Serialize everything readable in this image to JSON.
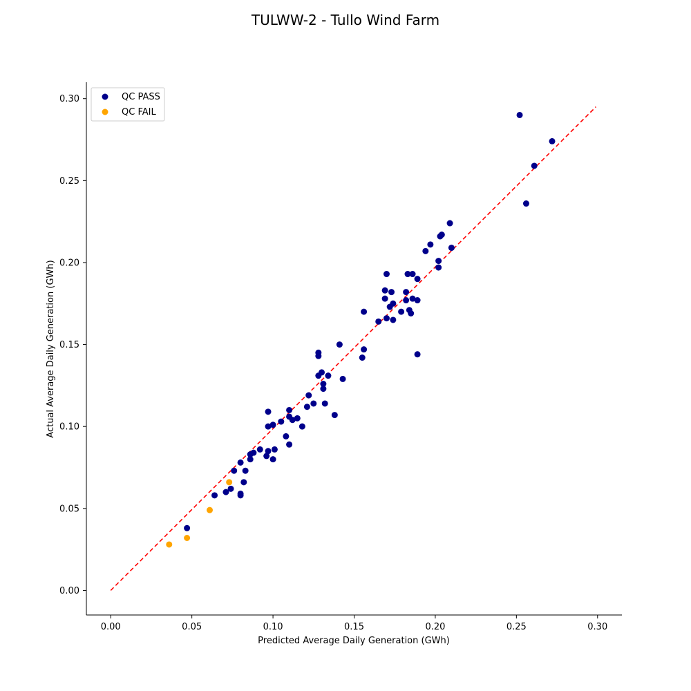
{
  "chart_data": {
    "type": "scatter",
    "title": "TULWW-2 - Tullo Wind Farm",
    "xlabel": "Predicted Average Daily Generation (GWh)",
    "ylabel": "Actual Average Daily Generation (GWh)",
    "xlim": [
      -0.015,
      0.315
    ],
    "ylim": [
      -0.015,
      0.31
    ],
    "x_ticks": [
      "0.00",
      "0.05",
      "0.10",
      "0.15",
      "0.20",
      "0.25",
      "0.30"
    ],
    "y_ticks": [
      "0.00",
      "0.05",
      "0.10",
      "0.15",
      "0.20",
      "0.25",
      "0.30"
    ],
    "grid": false,
    "legend_position": "top-left",
    "reference_line": {
      "style": "dashed",
      "color": "#ff0000",
      "from": [
        0.0,
        0.0
      ],
      "to": [
        0.299,
        0.295
      ]
    },
    "series": [
      {
        "name": "QC PASS",
        "color": "#00008b",
        "points": [
          [
            0.047,
            0.038
          ],
          [
            0.064,
            0.058
          ],
          [
            0.071,
            0.06
          ],
          [
            0.074,
            0.062
          ],
          [
            0.076,
            0.073
          ],
          [
            0.08,
            0.058
          ],
          [
            0.08,
            0.059
          ],
          [
            0.08,
            0.078
          ],
          [
            0.082,
            0.066
          ],
          [
            0.083,
            0.073
          ],
          [
            0.086,
            0.08
          ],
          [
            0.086,
            0.083
          ],
          [
            0.088,
            0.084
          ],
          [
            0.092,
            0.086
          ],
          [
            0.096,
            0.082
          ],
          [
            0.097,
            0.085
          ],
          [
            0.097,
            0.1
          ],
          [
            0.097,
            0.109
          ],
          [
            0.1,
            0.08
          ],
          [
            0.1,
            0.101
          ],
          [
            0.101,
            0.086
          ],
          [
            0.105,
            0.103
          ],
          [
            0.108,
            0.094
          ],
          [
            0.11,
            0.089
          ],
          [
            0.11,
            0.106
          ],
          [
            0.11,
            0.11
          ],
          [
            0.112,
            0.104
          ],
          [
            0.115,
            0.105
          ],
          [
            0.118,
            0.1
          ],
          [
            0.121,
            0.112
          ],
          [
            0.122,
            0.119
          ],
          [
            0.125,
            0.114
          ],
          [
            0.128,
            0.131
          ],
          [
            0.128,
            0.145
          ],
          [
            0.128,
            0.143
          ],
          [
            0.13,
            0.133
          ],
          [
            0.131,
            0.126
          ],
          [
            0.131,
            0.123
          ],
          [
            0.132,
            0.114
          ],
          [
            0.134,
            0.131
          ],
          [
            0.138,
            0.107
          ],
          [
            0.141,
            0.15
          ],
          [
            0.143,
            0.129
          ],
          [
            0.155,
            0.142
          ],
          [
            0.156,
            0.147
          ],
          [
            0.156,
            0.17
          ],
          [
            0.165,
            0.164
          ],
          [
            0.169,
            0.178
          ],
          [
            0.169,
            0.183
          ],
          [
            0.17,
            0.166
          ],
          [
            0.17,
            0.193
          ],
          [
            0.172,
            0.173
          ],
          [
            0.173,
            0.182
          ],
          [
            0.174,
            0.165
          ],
          [
            0.174,
            0.175
          ],
          [
            0.179,
            0.17
          ],
          [
            0.182,
            0.177
          ],
          [
            0.182,
            0.182
          ],
          [
            0.183,
            0.193
          ],
          [
            0.184,
            0.171
          ],
          [
            0.185,
            0.169
          ],
          [
            0.186,
            0.178
          ],
          [
            0.186,
            0.193
          ],
          [
            0.189,
            0.144
          ],
          [
            0.189,
            0.177
          ],
          [
            0.189,
            0.19
          ],
          [
            0.194,
            0.207
          ],
          [
            0.197,
            0.211
          ],
          [
            0.202,
            0.197
          ],
          [
            0.202,
            0.201
          ],
          [
            0.203,
            0.216
          ],
          [
            0.204,
            0.217
          ],
          [
            0.209,
            0.224
          ],
          [
            0.21,
            0.209
          ],
          [
            0.252,
            0.29
          ],
          [
            0.256,
            0.236
          ],
          [
            0.261,
            0.259
          ],
          [
            0.272,
            0.274
          ]
        ]
      },
      {
        "name": "QC FAIL",
        "color": "#ffa500",
        "points": [
          [
            0.036,
            0.028
          ],
          [
            0.047,
            0.032
          ],
          [
            0.061,
            0.049
          ],
          [
            0.073,
            0.066
          ]
        ]
      }
    ]
  }
}
